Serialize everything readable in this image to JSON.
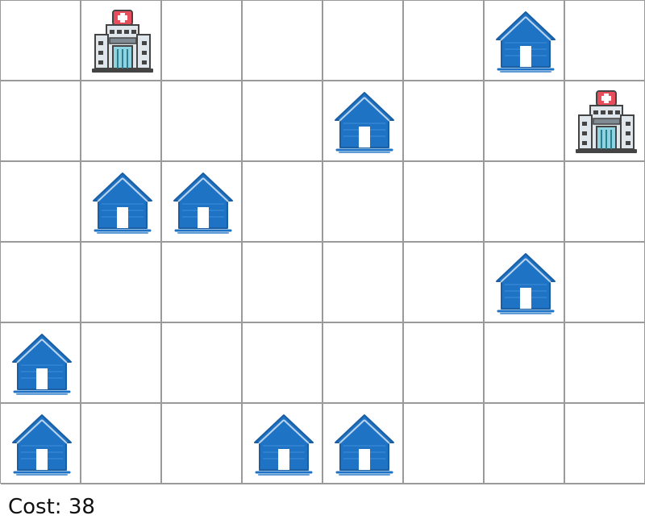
{
  "grid": {
    "rows": 6,
    "cols": 8,
    "hospitals": [
      [
        0,
        1
      ],
      [
        1,
        7
      ]
    ],
    "houses": [
      [
        0,
        6
      ],
      [
        1,
        4
      ],
      [
        2,
        1
      ],
      [
        2,
        2
      ],
      [
        3,
        6
      ],
      [
        4,
        0
      ],
      [
        5,
        0
      ],
      [
        5,
        3
      ],
      [
        5,
        4
      ]
    ]
  },
  "status": {
    "cost_label": "Cost: 38"
  },
  "colors": {
    "grid_line": "#9a9a9a",
    "house_blue": "#1f73c4",
    "hospital_red": "#e84d5b",
    "hospital_gray": "#7f8a93"
  },
  "icons": {
    "house": "house-icon",
    "hospital": "hospital-icon"
  }
}
